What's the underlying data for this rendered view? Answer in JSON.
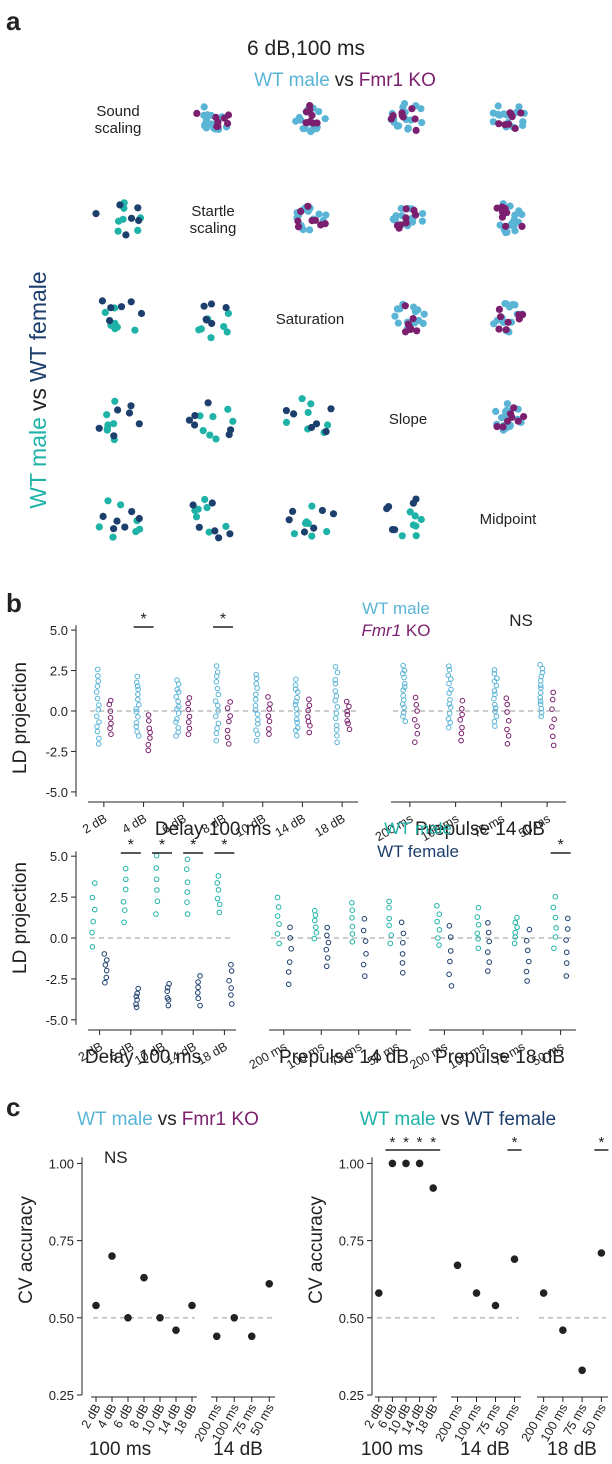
{
  "colors": {
    "wt_male": "#5ab4d6",
    "fmr1_ko": "#7b1f6e",
    "wt_male_teal": "#1fb3a8",
    "wt_female": "#1d3f6e",
    "dark": "#222222",
    "dash": "#999999"
  },
  "panels": {
    "a": "a",
    "b": "b",
    "c": "c"
  },
  "panel_a": {
    "title": "6 dB,100 ms",
    "top_legend": {
      "a": "WT male",
      "vs": "vs",
      "b": "Fmr1 KO"
    },
    "side_legend": {
      "a": "WT male",
      "vs": "vs",
      "b": "WT female"
    },
    "features": [
      [
        "Sound",
        "scaling"
      ],
      [
        "Startle",
        "scaling"
      ],
      [
        "Saturation"
      ],
      [
        "Slope"
      ],
      [
        "Midpoint"
      ]
    ]
  },
  "panel_b": {
    "ylabel": "LD projection",
    "legend1": {
      "a": "WT male",
      "b": "Fmr1",
      "b2": " KO",
      "ns": "NS"
    },
    "legend2": {
      "a": "WT male",
      "b": "WT female"
    },
    "group_titles": {
      "delay": "Delay 100 ms",
      "pp14": "Prepulse 14 dB",
      "pp18": "Prepulse 18 dB"
    }
  },
  "panel_c": {
    "title1": {
      "a": "WT male",
      "vs": "vs",
      "b": "Fmr1 KO"
    },
    "title2": {
      "a": "WT male",
      "vs": "vs",
      "b": "WT female"
    },
    "ylabel": "CV accuracy",
    "ns": "NS",
    "group_labels": {
      "ms": "100 ms",
      "db14": "14 dB",
      "db18": "18 dB"
    }
  },
  "chart_data": [
    {
      "type": "scatter",
      "title": "LD projection — WT male vs Fmr1 KO",
      "ylabel": "LD projection",
      "ylim": [
        -5.5,
        5.5
      ],
      "yticks": [
        5.0,
        2.5,
        0.0,
        -2.5,
        -5.0
      ],
      "groups": [
        {
          "title": "Delay 100 ms",
          "categories": [
            "2 dB",
            "4 dB",
            "6 dB",
            "8 dB",
            "10 dB",
            "14 dB",
            "18 dB"
          ],
          "significant": [
            false,
            true,
            false,
            true,
            false,
            false,
            false
          ]
        },
        {
          "title": "Prepulse 14 dB",
          "categories": [
            "200 ms",
            "100 ms",
            "75 ms",
            "50 ms"
          ],
          "significant": [
            false,
            false,
            false,
            false
          ]
        }
      ],
      "series": [
        {
          "name": "WT male",
          "range_per_category": [
            [
              -2.0,
              2.5
            ],
            [
              -1.5,
              2.1
            ],
            [
              -1.5,
              1.9
            ],
            [
              -1.8,
              2.8
            ],
            [
              -1.8,
              2.3
            ],
            [
              -1.5,
              1.9
            ],
            [
              -1.9,
              2.7
            ],
            [
              -0.6,
              2.8
            ],
            [
              -1.0,
              2.8
            ],
            [
              -0.9,
              2.6
            ],
            [
              -0.3,
              2.8
            ]
          ]
        },
        {
          "name": "Fmr1 KO",
          "range_per_category": [
            [
              -1.4,
              0.7
            ],
            [
              -2.4,
              -0.3
            ],
            [
              -1.4,
              0.8
            ],
            [
              -2.0,
              0.6
            ],
            [
              -1.4,
              0.8
            ],
            [
              -1.3,
              0.7
            ],
            [
              -1.1,
              0.6
            ],
            [
              -1.9,
              0.9
            ],
            [
              -1.8,
              0.6
            ],
            [
              -2.0,
              0.8
            ],
            [
              -2.1,
              1.2
            ]
          ]
        }
      ],
      "annotations": [
        "*",
        "*",
        "NS"
      ],
      "grid": false,
      "legend_position": "top-right"
    },
    {
      "type": "scatter",
      "title": "LD projection — WT male vs WT female",
      "ylabel": "LD projection",
      "ylim": [
        -5.5,
        5.5
      ],
      "yticks": [
        5.0,
        2.5,
        0.0,
        -2.5,
        -5.0
      ],
      "groups": [
        {
          "title": "Delay 100 ms",
          "categories": [
            "2 dB",
            "6 dB",
            "10 dB",
            "14 dB",
            "18 dB"
          ],
          "significant": [
            false,
            true,
            true,
            true,
            true
          ]
        },
        {
          "title": "Prepulse 14 dB",
          "categories": [
            "200 ms",
            "100 ms",
            "75 ms",
            "50 ms"
          ],
          "significant": [
            false,
            false,
            false,
            false
          ]
        },
        {
          "title": "Prepulse 18 dB",
          "categories": [
            "200 ms",
            "100 ms",
            "75 ms",
            "50 ms"
          ],
          "significant": [
            false,
            false,
            false,
            true
          ]
        }
      ],
      "series": [
        {
          "name": "WT male",
          "range_per_category": [
            [
              -0.5,
              3.3
            ],
            [
              1.0,
              4.2
            ],
            [
              1.5,
              5.0
            ],
            [
              1.5,
              4.8
            ],
            [
              1.6,
              3.8
            ],
            [
              -0.3,
              2.5
            ],
            [
              0.0,
              1.7
            ],
            [
              -0.2,
              2.2
            ],
            [
              -0.3,
              2.3
            ],
            [
              -0.4,
              1.9
            ],
            [
              -0.6,
              1.8
            ],
            [
              -0.3,
              1.2
            ],
            [
              -0.6,
              2.5
            ]
          ]
        },
        {
          "name": "WT female",
          "range_per_category": [
            [
              -2.7,
              -1.0
            ],
            [
              -4.2,
              -3.1
            ],
            [
              -4.1,
              -2.8
            ],
            [
              -4.1,
              -2.3
            ],
            [
              -4.0,
              -1.6
            ],
            [
              -2.8,
              0.7
            ],
            [
              -1.7,
              0.7
            ],
            [
              -2.3,
              1.1
            ],
            [
              -2.1,
              0.9
            ],
            [
              -2.9,
              0.7
            ],
            [
              -2.0,
              0.9
            ],
            [
              -2.6,
              0.5
            ],
            [
              -2.3,
              1.2
            ]
          ]
        }
      ],
      "annotations": [
        "*",
        "*",
        "*",
        "*",
        "*"
      ],
      "grid": false,
      "legend_position": "top-right"
    },
    {
      "type": "scatter",
      "title": "WT male vs Fmr1 KO",
      "ylabel": "CV accuracy",
      "ylim": [
        0.25,
        1.05
      ],
      "yticks": [
        1.0,
        0.75,
        0.5,
        0.25
      ],
      "chance_level": 0.5,
      "groups": [
        {
          "title": "100 ms",
          "categories": [
            "2 dB",
            "4 dB",
            "6 dB",
            "8 dB",
            "10 dB",
            "14 dB",
            "18 dB"
          ],
          "values": [
            0.54,
            0.7,
            0.5,
            0.63,
            0.5,
            0.46,
            0.54
          ]
        },
        {
          "title": "14 dB",
          "categories": [
            "200 ms",
            "100 ms",
            "75 ms",
            "50 ms"
          ],
          "values": [
            0.44,
            0.5,
            0.44,
            0.61
          ]
        }
      ],
      "annotations": [
        "NS"
      ]
    },
    {
      "type": "scatter",
      "title": "WT male vs WT female",
      "ylabel": "CV accuracy",
      "ylim": [
        0.25,
        1.05
      ],
      "yticks": [
        1.0,
        0.75,
        0.5,
        0.25
      ],
      "chance_level": 0.5,
      "groups": [
        {
          "title": "100 ms",
          "categories": [
            "2 dB",
            "6 dB",
            "10 dB",
            "14 dB",
            "18 dB"
          ],
          "values": [
            0.58,
            1.0,
            1.0,
            1.0,
            0.92
          ],
          "significant": [
            false,
            true,
            true,
            true,
            true
          ]
        },
        {
          "title": "14 dB",
          "categories": [
            "200 ms",
            "100 ms",
            "75 ms",
            "50 ms"
          ],
          "values": [
            0.67,
            0.58,
            0.54,
            0.69
          ],
          "significant": [
            false,
            false,
            false,
            true
          ]
        },
        {
          "title": "18 dB",
          "categories": [
            "200 ms",
            "100 ms",
            "75 ms",
            "50 ms"
          ],
          "values": [
            0.58,
            0.46,
            0.33,
            0.71
          ],
          "significant": [
            false,
            false,
            false,
            true
          ]
        }
      ]
    }
  ]
}
